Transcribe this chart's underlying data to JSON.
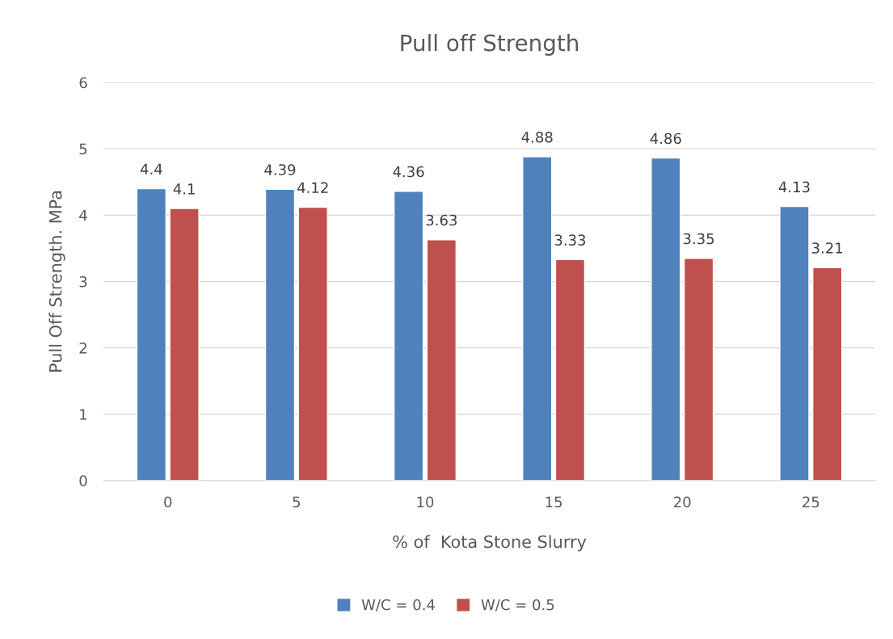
{
  "chart_data": {
    "type": "bar",
    "title": "Pull off Strength",
    "xlabel": "% of  Kota Stone Slurry",
    "ylabel": "Pull Off Strength. MPa",
    "categories": [
      "0",
      "5",
      "10",
      "15",
      "20",
      "25"
    ],
    "series": [
      {
        "name": "W/C = 0.4",
        "color": "#4f81bd",
        "values": [
          4.4,
          4.39,
          4.36,
          4.88,
          4.86,
          4.13
        ]
      },
      {
        "name": "W/C = 0.5",
        "color": "#c0504d",
        "values": [
          4.1,
          4.12,
          3.63,
          3.33,
          3.35,
          3.21
        ]
      }
    ],
    "ylim": [
      0,
      6
    ],
    "yticks": [
      0,
      1,
      2,
      3,
      4,
      5,
      6
    ],
    "grid": "y",
    "legend": "bottom",
    "data_labels": true
  }
}
